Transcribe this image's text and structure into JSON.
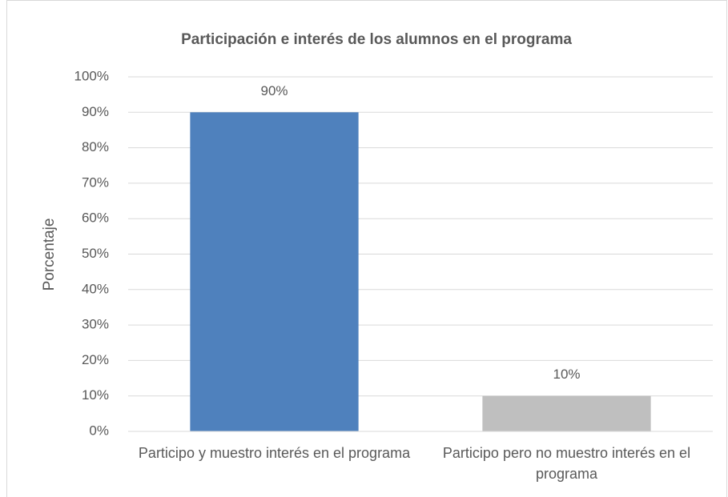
{
  "chart_data": {
    "type": "bar",
    "title": "Participación e interés de los alumnos en el programa",
    "y_label": "Porcentaje",
    "categories": [
      "Participo y muestro interés en el programa",
      "Participo pero no muestro interés en el programa"
    ],
    "values": [
      90,
      10
    ],
    "value_labels": [
      "90%",
      "10%"
    ],
    "colors": [
      "#4f81bd",
      "#bfbfbf"
    ],
    "ylim": [
      0,
      100
    ],
    "yticks": [
      {
        "value": 0,
        "label": "0%"
      },
      {
        "value": 10,
        "label": "10%"
      },
      {
        "value": 20,
        "label": "20%"
      },
      {
        "value": 30,
        "label": "30%"
      },
      {
        "value": 40,
        "label": "40%"
      },
      {
        "value": 50,
        "label": "50%"
      },
      {
        "value": 60,
        "label": "60%"
      },
      {
        "value": 70,
        "label": "70%"
      },
      {
        "value": 80,
        "label": "80%"
      },
      {
        "value": 90,
        "label": "90%"
      },
      {
        "value": 100,
        "label": "100%"
      }
    ],
    "grid": true
  }
}
